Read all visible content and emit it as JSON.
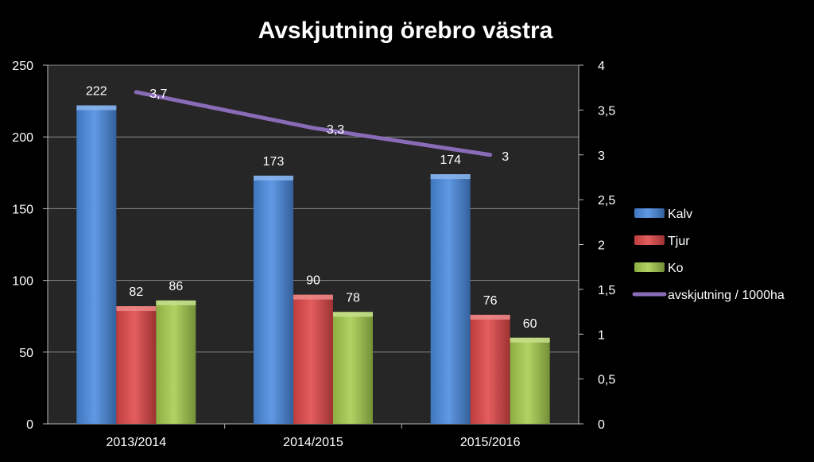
{
  "chart_data": {
    "type": "bar",
    "title": "Avskjutning örebro västra",
    "categories": [
      "2013/2014",
      "2014/2015",
      "2015/2016"
    ],
    "series": [
      {
        "name": "Kalv",
        "type": "bar",
        "axis": "left",
        "color": "#4a8be0",
        "values": [
          222,
          173,
          174
        ],
        "labels": [
          "222",
          "173",
          "174"
        ]
      },
      {
        "name": "Tjur",
        "type": "bar",
        "axis": "left",
        "color": "#e04848",
        "values": [
          82,
          90,
          76
        ],
        "labels": [
          "82",
          "90",
          "76"
        ]
      },
      {
        "name": "Ko",
        "type": "bar",
        "axis": "left",
        "color": "#a6cd4e",
        "values": [
          86,
          78,
          60
        ],
        "labels": [
          "86",
          "78",
          "60"
        ]
      },
      {
        "name": "avskjutning / 1000ha",
        "type": "line",
        "axis": "right",
        "color": "#8a6bb8",
        "values": [
          3.7,
          3.3,
          3.0
        ],
        "labels": [
          "3,7",
          "3,3",
          "3"
        ]
      }
    ],
    "y_left": {
      "min": 0,
      "max": 250,
      "ticks": [
        "0",
        "50",
        "100",
        "150",
        "200",
        "250"
      ]
    },
    "y_right": {
      "min": 0,
      "max": 4,
      "ticks": [
        "0",
        "0,5",
        "1",
        "1,5",
        "2",
        "2,5",
        "3",
        "3,5",
        "4"
      ]
    },
    "plot_background": "#262626",
    "grid": "horizontal",
    "legend": "right"
  }
}
